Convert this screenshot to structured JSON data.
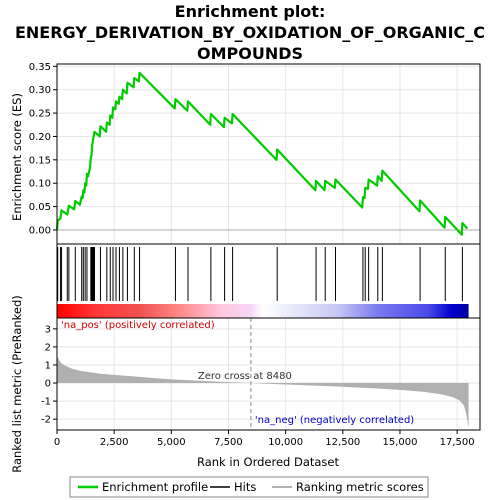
{
  "chart_data": {
    "type": "line",
    "title_lines": [
      "Enrichment plot:",
      "ENERGY_DERIVATION_BY_OXIDATION_OF_ORGANIC_C",
      "OMPOUNDS"
    ],
    "xlabel": "Rank in Ordered Dataset",
    "xlim": [
      0,
      18500
    ],
    "x_ticks": [
      0,
      2500,
      5000,
      7500,
      10000,
      12500,
      15000,
      17500
    ],
    "x_tick_labels": [
      "0",
      "2,500",
      "5,000",
      "7,500",
      "10,000",
      "12,500",
      "15,000",
      "17,500"
    ],
    "es_panel": {
      "ylabel": "Enrichment score (ES)",
      "ylim": [
        -0.03,
        0.355
      ],
      "y_ticks": [
        0.0,
        0.05,
        0.1,
        0.15,
        0.2,
        0.25,
        0.3,
        0.35
      ],
      "y_tick_labels": [
        "0.00",
        "0.05",
        "0.10",
        "0.15",
        "0.20",
        "0.25",
        "0.30",
        "0.35"
      ],
      "series_color": "#00cc00",
      "points": [
        [
          0,
          0.0
        ],
        [
          30,
          0.02
        ],
        [
          150,
          0.025
        ],
        [
          200,
          0.042
        ],
        [
          450,
          0.033
        ],
        [
          520,
          0.052
        ],
        [
          750,
          0.044
        ],
        [
          800,
          0.062
        ],
        [
          1000,
          0.054
        ],
        [
          1080,
          0.072
        ],
        [
          1120,
          0.068
        ],
        [
          1150,
          0.085
        ],
        [
          1200,
          0.08
        ],
        [
          1230,
          0.1
        ],
        [
          1280,
          0.095
        ],
        [
          1310,
          0.12
        ],
        [
          1360,
          0.115
        ],
        [
          1450,
          0.135
        ],
        [
          1480,
          0.155
        ],
        [
          1510,
          0.16
        ],
        [
          1540,
          0.182
        ],
        [
          1570,
          0.19
        ],
        [
          1600,
          0.2
        ],
        [
          1640,
          0.21
        ],
        [
          1870,
          0.2
        ],
        [
          1900,
          0.222
        ],
        [
          2150,
          0.21
        ],
        [
          2180,
          0.23
        ],
        [
          2300,
          0.225
        ],
        [
          2330,
          0.245
        ],
        [
          2420,
          0.24
        ],
        [
          2450,
          0.262
        ],
        [
          2550,
          0.258
        ],
        [
          2580,
          0.275
        ],
        [
          2700,
          0.27
        ],
        [
          2730,
          0.285
        ],
        [
          2850,
          0.28
        ],
        [
          2880,
          0.3
        ],
        [
          3050,
          0.292
        ],
        [
          3080,
          0.315
        ],
        [
          3350,
          0.305
        ],
        [
          3380,
          0.325
        ],
        [
          3580,
          0.318
        ],
        [
          3610,
          0.336
        ],
        [
          5150,
          0.26
        ],
        [
          5180,
          0.28
        ],
        [
          5700,
          0.255
        ],
        [
          5730,
          0.275
        ],
        [
          6700,
          0.225
        ],
        [
          6730,
          0.248
        ],
        [
          7300,
          0.22
        ],
        [
          7330,
          0.24
        ],
        [
          7650,
          0.228
        ],
        [
          7680,
          0.248
        ],
        [
          9600,
          0.15
        ],
        [
          9630,
          0.172
        ],
        [
          11300,
          0.085
        ],
        [
          11330,
          0.105
        ],
        [
          11700,
          0.085
        ],
        [
          11730,
          0.105
        ],
        [
          12150,
          0.09
        ],
        [
          12180,
          0.108
        ],
        [
          13350,
          0.048
        ],
        [
          13380,
          0.07
        ],
        [
          13450,
          0.068
        ],
        [
          13480,
          0.09
        ],
        [
          13600,
          0.088
        ],
        [
          13630,
          0.108
        ],
        [
          14000,
          0.095
        ],
        [
          14030,
          0.115
        ],
        [
          14200,
          0.105
        ],
        [
          14230,
          0.127
        ],
        [
          15850,
          0.04
        ],
        [
          15880,
          0.063
        ],
        [
          16950,
          0.005
        ],
        [
          16980,
          0.028
        ],
        [
          17700,
          -0.01
        ],
        [
          17730,
          0.015
        ],
        [
          17950,
          0.003
        ]
      ]
    },
    "hits": [
      30,
      150,
      200,
      450,
      520,
      800,
      1080,
      1150,
      1230,
      1310,
      1480,
      1510,
      1540,
      1570,
      1600,
      1640,
      1900,
      2180,
      2330,
      2450,
      2580,
      2730,
      2880,
      3080,
      3380,
      3610,
      5180,
      5730,
      6730,
      7330,
      7680,
      9630,
      11330,
      11730,
      12180,
      13380,
      13480,
      13630,
      14030,
      14230,
      15880,
      16980,
      17730
    ],
    "rank_panel": {
      "ylabel_lines": [
        "Ranked list metric (PreRanked)"
      ],
      "ylim": [
        -2.6,
        3.6
      ],
      "y_ticks": [
        -2,
        -1,
        0,
        1,
        2,
        3
      ],
      "y_tick_labels": [
        "-2",
        "-1",
        "0",
        "1",
        "2",
        "3"
      ],
      "fill_color": "#b0b0b0",
      "profile": [
        [
          0,
          1.55
        ],
        [
          60,
          1.35
        ],
        [
          150,
          1.15
        ],
        [
          300,
          1.0
        ],
        [
          600,
          0.82
        ],
        [
          1000,
          0.68
        ],
        [
          1500,
          0.58
        ],
        [
          2000,
          0.5
        ],
        [
          3000,
          0.4
        ],
        [
          4000,
          0.3
        ],
        [
          5000,
          0.2
        ],
        [
          6000,
          0.14
        ],
        [
          7000,
          0.08
        ],
        [
          8000,
          0.03
        ],
        [
          8480,
          0.0
        ],
        [
          9000,
          -0.03
        ],
        [
          10000,
          -0.08
        ],
        [
          11000,
          -0.13
        ],
        [
          12000,
          -0.18
        ],
        [
          13000,
          -0.24
        ],
        [
          14000,
          -0.3
        ],
        [
          15000,
          -0.38
        ],
        [
          16000,
          -0.48
        ],
        [
          16800,
          -0.62
        ],
        [
          17300,
          -0.78
        ],
        [
          17600,
          -0.95
        ],
        [
          17800,
          -1.25
        ],
        [
          17900,
          -1.7
        ],
        [
          17960,
          -2.2
        ],
        [
          18000,
          -2.45
        ]
      ]
    },
    "zero_cross_label": "Zero cross at 8480",
    "zero_cross_x": 8480,
    "pos_label": "'na_pos' (positively correlated)",
    "neg_label": "'na_neg' (negatively correlated)",
    "pos_color": "#cc0000",
    "neg_color": "#0000cc",
    "legend": [
      {
        "label": "Enrichment profile",
        "color": "#00cc00"
      },
      {
        "label": "Hits",
        "color": "#000000"
      },
      {
        "label": "Ranking metric scores",
        "color": "#b0b0b0"
      }
    ]
  }
}
